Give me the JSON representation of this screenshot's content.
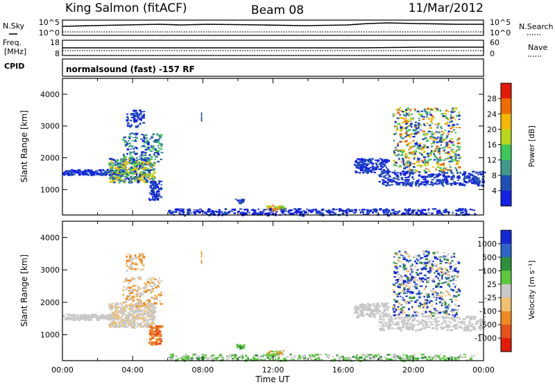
{
  "header": {
    "station": "King Salmon (fitACF)",
    "beam": "Beam 08",
    "date": "11/Mar/2012"
  },
  "noise_panel": {
    "left_label": "N.Sky",
    "left_ticks": [
      "10^5",
      "10^0"
    ],
    "right_ticks": [
      "10^5",
      "10^0"
    ],
    "right_label": "N.Search"
  },
  "freq_panel": {
    "left_label_1": "Freq.",
    "left_label_2": "[MHz]",
    "left_ticks": [
      "18",
      "8"
    ],
    "right_ticks": [
      "60",
      "0"
    ],
    "right_label": "Nave"
  },
  "cpid": {
    "label": "CPID",
    "value": "normalsound (fast) -157 RF"
  },
  "chart_data": [
    {
      "type": "heatmap",
      "name": "power",
      "ylabel": "Slant Range [km]",
      "ylim": [
        200,
        4500
      ],
      "yticks": [
        "1000",
        "2000",
        "3000",
        "4000"
      ],
      "xlim": [
        0,
        24
      ],
      "colorbar": {
        "label": "Power [dB]",
        "ticks": [
          "4",
          "8",
          "12",
          "16",
          "20",
          "24",
          "28"
        ],
        "colors": [
          "#1420e6",
          "#1f4fb4",
          "#3f9a8a",
          "#3cc85a",
          "#b8d818",
          "#f4b800",
          "#f06c00",
          "#e41a08"
        ]
      }
    },
    {
      "type": "heatmap",
      "name": "velocity",
      "ylabel": "Slant Range [km]",
      "ylim": [
        200,
        4500
      ],
      "yticks": [
        "1000",
        "2000",
        "3000",
        "4000"
      ],
      "xlim": [
        0,
        24
      ],
      "xticks": [
        "00:00",
        "04:00",
        "08:00",
        "12:00",
        "16:00",
        "20:00",
        "00:00"
      ],
      "xlabel": "Time UT",
      "colorbar": {
        "label": "Velocity [m s⁻¹]",
        "ticks": [
          "1000",
          "500",
          "100",
          "25",
          "-25",
          "-100",
          "-500",
          "-1000"
        ],
        "colors": [
          "#1428d8",
          "#2f64c8",
          "#2f8f3c",
          "#5ac83a",
          "#c8c8c8",
          "#f0c070",
          "#f08a20",
          "#e8501a",
          "#e41a08"
        ]
      }
    }
  ]
}
